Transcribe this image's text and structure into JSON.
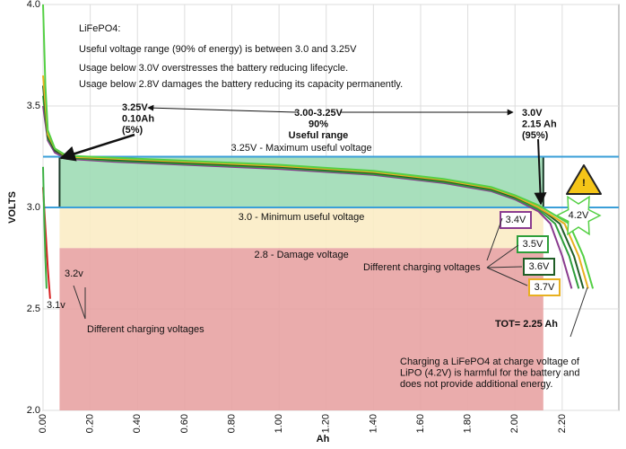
{
  "chart_data": {
    "type": "line",
    "x_label": "Ah",
    "y_label": "VOLTS",
    "xlim": [
      0,
      2.44
    ],
    "ylim": [
      2.0,
      4.0
    ],
    "xticks": [
      {
        "value": 0,
        "label": "0.00"
      },
      {
        "value": 0.2,
        "label": "0.20"
      },
      {
        "value": 0.4,
        "label": "0.40"
      },
      {
        "value": 0.6,
        "label": "0.60"
      },
      {
        "value": 0.8,
        "label": "0.80"
      },
      {
        "value": 1.0,
        "label": "1.00"
      },
      {
        "value": 1.2,
        "label": "1.20"
      },
      {
        "value": 1.4,
        "label": "1.40"
      },
      {
        "value": 1.6,
        "label": "1.60"
      },
      {
        "value": 1.8,
        "label": "1.80"
      },
      {
        "value": 2.0,
        "label": "2.00"
      },
      {
        "value": 2.2,
        "label": "2.20"
      }
    ],
    "yticks": [
      {
        "value": 2.0,
        "label": "2.0"
      },
      2.5,
      {
        "value": 3.0,
        "label": "3.0"
      },
      3.5,
      {
        "value": 4.0,
        "label": "4.0"
      }
    ],
    "grid": true,
    "regions": [
      {
        "label": "2.8 - Damage voltage",
        "x0": 0.07,
        "x1": 2.12,
        "y0": 2.0,
        "y1": 2.8,
        "color": "#e8a3a3"
      },
      {
        "label": "3.0 - Minimum useful voltage",
        "x0": 0.07,
        "x1": 2.12,
        "y0": 2.8,
        "y1": 3.0,
        "color": "#fbecc5"
      },
      {
        "label": "3.25V - Maximum useful voltage",
        "x0": 0.07,
        "x1": 2.12,
        "y0": 3.0,
        "y1": 3.25,
        "color": "#9fdcb5"
      }
    ],
    "hlines": [
      3.25,
      3.0
    ],
    "hline_color": "#3a9fd8",
    "series": [
      {
        "name": "3.1v",
        "color": "#d62020",
        "x": [
          0,
          0.01,
          0.02,
          0.03
        ],
        "values": [
          3.1,
          2.9,
          2.7,
          2.55
        ]
      },
      {
        "name": "3.2v",
        "color": "#3cb043",
        "x": [
          0,
          0.005,
          0.01,
          0.015
        ],
        "values": [
          3.2,
          2.95,
          2.75,
          2.6
        ]
      },
      {
        "name": "3.4V",
        "color": "#8a3b8f",
        "x": [
          0,
          0.02,
          0.05,
          0.1,
          0.3,
          0.6,
          1.0,
          1.4,
          1.7,
          1.9,
          2.0,
          2.1,
          2.15,
          2.2,
          2.24
        ],
        "values": [
          3.5,
          3.33,
          3.27,
          3.24,
          3.225,
          3.21,
          3.19,
          3.16,
          3.12,
          3.08,
          3.04,
          2.98,
          2.92,
          2.76,
          2.6
        ]
      },
      {
        "name": "3.5V",
        "color": "#2e9e3a",
        "x": [
          0,
          0.02,
          0.05,
          0.1,
          0.3,
          0.6,
          1.0,
          1.4,
          1.7,
          1.9,
          2.0,
          2.1,
          2.17,
          2.23,
          2.27
        ],
        "values": [
          3.55,
          3.34,
          3.28,
          3.245,
          3.23,
          3.215,
          3.195,
          3.165,
          3.125,
          3.085,
          3.045,
          2.99,
          2.92,
          2.76,
          2.6
        ]
      },
      {
        "name": "3.6V",
        "color": "#1f5e26",
        "x": [
          0,
          0.02,
          0.05,
          0.1,
          0.3,
          0.6,
          1.0,
          1.4,
          1.7,
          1.9,
          2.0,
          2.1,
          2.19,
          2.25,
          2.29
        ],
        "values": [
          3.6,
          3.35,
          3.28,
          3.25,
          3.235,
          3.22,
          3.2,
          3.17,
          3.13,
          3.09,
          3.05,
          3.0,
          2.92,
          2.76,
          2.6
        ]
      },
      {
        "name": "3.7V",
        "color": "#e8b020",
        "x": [
          0,
          0.02,
          0.05,
          0.1,
          0.3,
          0.6,
          1.0,
          1.4,
          1.7,
          1.9,
          2.0,
          2.1,
          2.21,
          2.27,
          2.31
        ],
        "values": [
          3.65,
          3.36,
          3.29,
          3.25,
          3.24,
          3.225,
          3.205,
          3.175,
          3.135,
          3.095,
          3.055,
          3.0,
          2.92,
          2.76,
          2.6
        ]
      },
      {
        "name": "4.2V",
        "color": "#55d045",
        "x": [
          0,
          0.01,
          0.02,
          0.05,
          0.1,
          0.3,
          0.6,
          1.0,
          1.4,
          1.7,
          1.9,
          2.0,
          2.1,
          2.23,
          2.29,
          2.33
        ],
        "values": [
          4.0,
          3.6,
          3.38,
          3.29,
          3.255,
          3.245,
          3.23,
          3.21,
          3.18,
          3.14,
          3.1,
          3.06,
          3.01,
          2.92,
          2.76,
          2.6
        ]
      }
    ],
    "warning": "!",
    "annotations": [
      [
        "LiFePO4:"
      ],
      [
        "Useful voltage range (90% of energy) is between 3.0 and 3.25V"
      ],
      [
        "Usage below 3.0V overstresses the battery reducing lifecycle."
      ],
      [
        "Usage below 2.8V damages the battery reducing its capacity permanently."
      ],
      [
        "3.25V",
        "0.10Ah",
        "(5%)"
      ],
      [
        "3.00-3.25V",
        "90%",
        "Useful range"
      ],
      [
        "3.0V",
        "2.15 Ah",
        "(95%)"
      ],
      [
        "Different charging voltages"
      ],
      [
        "Different charging voltages"
      ],
      [
        "TOT= 2.25 Ah"
      ],
      [
        "Charging a LiFePO4 at charge voltage of",
        "LiPO (4.2V) is harmful for the battery and",
        "does not provide additional energy."
      ]
    ]
  }
}
